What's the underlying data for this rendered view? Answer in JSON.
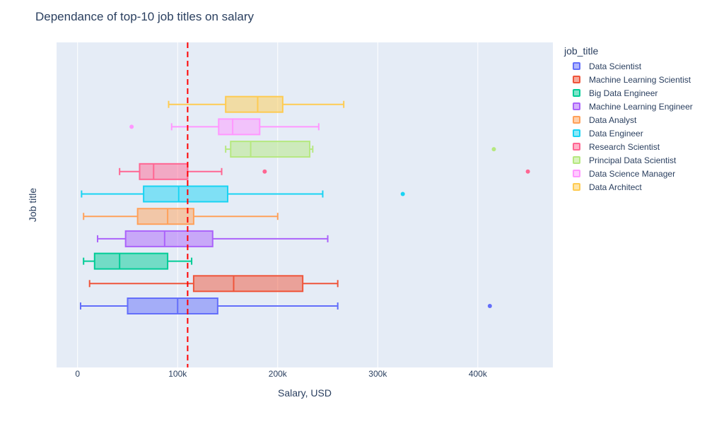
{
  "chart_data": {
    "type": "box",
    "title": "Dependance of top-10 job titles on salary",
    "xlabel": "Salary, USD",
    "ylabel": "Job title",
    "legend_title": "job_title",
    "legend_position": "right",
    "xlim": [
      -21000,
      475000
    ],
    "xticks": [
      {
        "value": 0,
        "label": "0"
      },
      {
        "value": 100000,
        "label": "100k"
      },
      {
        "value": 200000,
        "label": "200k"
      },
      {
        "value": 300000,
        "label": "300k"
      },
      {
        "value": 400000,
        "label": "400k"
      }
    ],
    "reference_line": {
      "value": 110000,
      "color": "#ff0000",
      "style": "dashed"
    },
    "series": [
      {
        "name": "Data Scientist",
        "color": "#636efa",
        "fill": "rgba(99,110,250,0.5)",
        "min": 3000,
        "q1": 50000,
        "median": 100000,
        "q3": 140000,
        "max": 260000,
        "outliers": [
          412000
        ]
      },
      {
        "name": "Machine Learning Scientist",
        "color": "#ef553b",
        "fill": "rgba(239,85,59,0.5)",
        "min": 12000,
        "q1": 116000,
        "median": 156000,
        "q3": 225000,
        "max": 260000,
        "outliers": []
      },
      {
        "name": "Big Data Engineer",
        "color": "#00cc96",
        "fill": "rgba(0,204,150,0.5)",
        "min": 6000,
        "q1": 17000,
        "median": 42000,
        "q3": 90000,
        "max": 114000,
        "outliers": []
      },
      {
        "name": "Machine Learning Engineer",
        "color": "#ab63fa",
        "fill": "rgba(171,99,250,0.5)",
        "min": 20000,
        "q1": 48000,
        "median": 87000,
        "q3": 135000,
        "max": 250000,
        "outliers": []
      },
      {
        "name": "Data Analyst",
        "color": "#ffa15a",
        "fill": "rgba(255,161,90,0.5)",
        "min": 6000,
        "q1": 60000,
        "median": 90000,
        "q3": 116000,
        "max": 200000,
        "outliers": []
      },
      {
        "name": "Data Engineer",
        "color": "#19d3f3",
        "fill": "rgba(25,211,243,0.5)",
        "min": 4000,
        "q1": 66000,
        "median": 101000,
        "q3": 150000,
        "max": 245000,
        "outliers": [
          325000
        ]
      },
      {
        "name": "Research Scientist",
        "color": "#ff6692",
        "fill": "rgba(255,102,146,0.5)",
        "min": 42000,
        "q1": 62000,
        "median": 76000,
        "q3": 110000,
        "max": 144000,
        "outliers": [
          187000,
          450000
        ]
      },
      {
        "name": "Principal Data Scientist",
        "color": "#b6e880",
        "fill": "rgba(182,232,128,0.5)",
        "min": 148000,
        "q1": 153000,
        "median": 173000,
        "q3": 232000,
        "max": 235000,
        "outliers": [
          416000
        ]
      },
      {
        "name": "Data Science Manager",
        "color": "#ff97ff",
        "fill": "rgba(255,151,255,0.5)",
        "min": 94000,
        "q1": 141000,
        "median": 155000,
        "q3": 182000,
        "max": 241000,
        "outliers": [
          54000
        ]
      },
      {
        "name": "Data Architect",
        "color": "#fecb52",
        "fill": "rgba(254,203,82,0.5)",
        "min": 91000,
        "q1": 148000,
        "median": 180000,
        "q3": 205000,
        "max": 266000,
        "outliers": []
      }
    ]
  }
}
